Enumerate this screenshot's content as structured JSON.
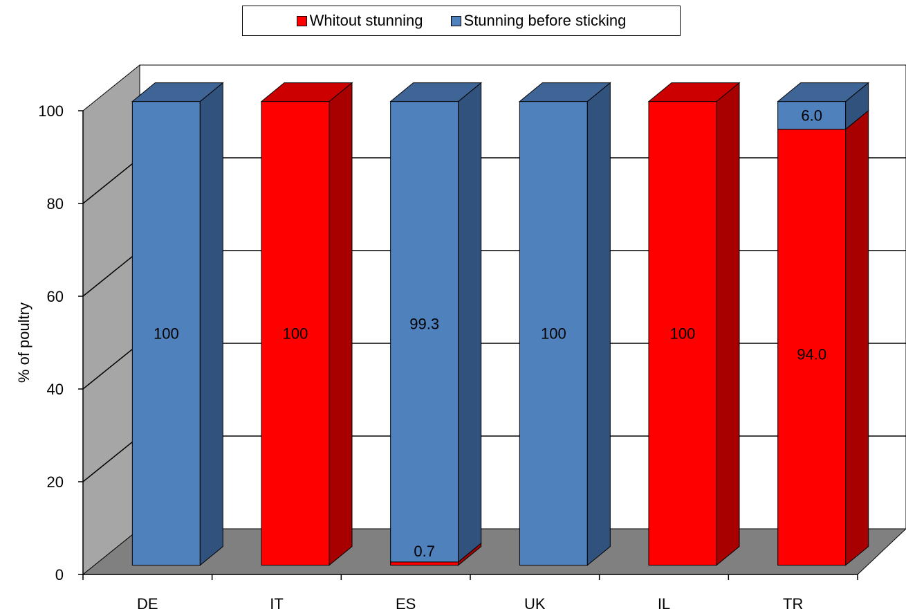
{
  "chart_data": {
    "type": "bar",
    "stacked": true,
    "three_d": true,
    "categories": [
      "DE",
      "IT",
      "ES",
      "UK",
      "IL",
      "TR"
    ],
    "series": [
      {
        "name": "Whitout stunning",
        "color": "#ff0000",
        "side_color": "#a80000",
        "top_color": "#cc0000",
        "values": [
          0,
          100,
          0.7,
          0,
          100,
          94.0
        ]
      },
      {
        "name": "Stunning before sticking",
        "color": "#4f81bd",
        "side_color": "#31527c",
        "top_color": "#3f6596",
        "values": [
          100,
          0,
          99.3,
          100,
          0,
          6.0
        ]
      }
    ],
    "data_labels": [
      {
        "category": "DE",
        "series": 1,
        "text": "100"
      },
      {
        "category": "IT",
        "series": 0,
        "text": "100"
      },
      {
        "category": "ES",
        "series": 1,
        "text": "99.3"
      },
      {
        "category": "ES",
        "series": 0,
        "text": "0.7"
      },
      {
        "category": "UK",
        "series": 1,
        "text": "100"
      },
      {
        "category": "IL",
        "series": 0,
        "text": "100"
      },
      {
        "category": "TR",
        "series": 1,
        "text": "6.0"
      },
      {
        "category": "TR",
        "series": 0,
        "text": "94.0"
      }
    ],
    "ylabel": "% of poultry",
    "xlabel": "",
    "ylim": [
      0,
      100
    ],
    "yticks": [
      0,
      20,
      40,
      60,
      80,
      100
    ],
    "grid": true,
    "legend_position": "top"
  }
}
